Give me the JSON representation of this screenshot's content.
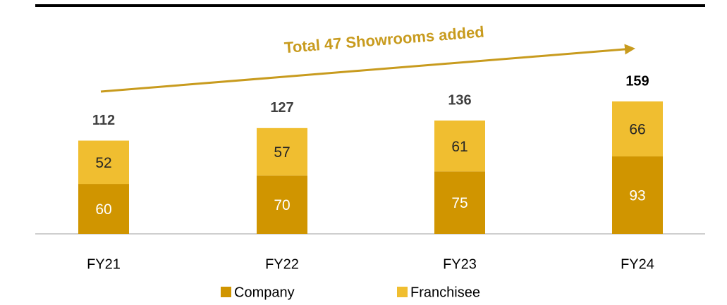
{
  "chart_data": {
    "type": "stacked_bar",
    "annotation": "Total 47 Showrooms added",
    "categories": [
      "FY21",
      "FY22",
      "FY23",
      "FY24"
    ],
    "series": [
      {
        "name": "Company",
        "color": "#d09500",
        "values": [
          60,
          70,
          75,
          93
        ]
      },
      {
        "name": "Franchisee",
        "color": "#f0be30",
        "values": [
          52,
          57,
          61,
          66
        ]
      }
    ],
    "totals": [
      112,
      127,
      136,
      159
    ]
  }
}
